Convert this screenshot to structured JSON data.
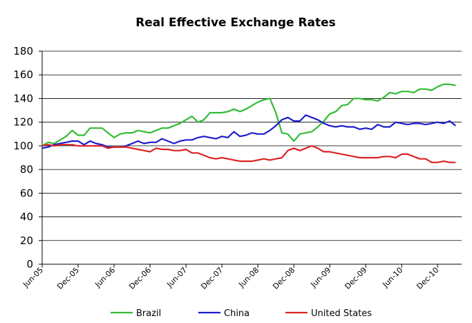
{
  "chart_data": {
    "type": "line",
    "title": "Real Effective Exchange Rates",
    "xlabel": "",
    "ylabel": "",
    "ylim": [
      0,
      180
    ],
    "yticks": [
      0,
      20,
      40,
      60,
      80,
      100,
      120,
      140,
      160,
      180
    ],
    "grid": "horizontal",
    "legend": "bottom",
    "x_tick_labels": [
      "Jun-05",
      "Dec-05",
      "Jun-06",
      "Dec-06",
      "Jun-07",
      "Dec-07",
      "Jun-08",
      "Dec-08",
      "Jun-09",
      "Dec-09",
      "Jun-10",
      "Dec-10"
    ],
    "x_start": "Jun-05",
    "x_frequency": "monthly",
    "series": [
      {
        "name": "Brazil",
        "color": "#33bb33",
        "values": [
          100,
          103,
          102,
          105,
          108,
          113,
          109,
          109,
          115,
          115,
          115,
          111,
          107,
          110,
          111,
          111,
          113,
          112,
          111,
          113,
          115,
          115,
          117,
          119,
          122,
          125,
          120,
          122,
          128,
          128,
          128,
          129,
          131,
          129,
          131,
          134,
          137,
          139,
          140,
          128,
          111,
          110,
          104,
          110,
          111,
          112,
          116,
          121,
          127,
          129,
          134,
          135,
          140,
          140,
          139,
          139,
          138,
          141,
          145,
          144,
          146,
          146,
          145,
          148,
          148,
          147,
          150,
          152,
          152,
          151
        ]
      },
      {
        "name": "China",
        "color": "#1c1ccc",
        "values": [
          98,
          99,
          101,
          102,
          103,
          104,
          104,
          101,
          104,
          102,
          101,
          99,
          99,
          99,
          100,
          102,
          104,
          102,
          103,
          103,
          106,
          104,
          102,
          104,
          105,
          105,
          107,
          108,
          107,
          106,
          108,
          107,
          112,
          108,
          109,
          111,
          110,
          110,
          113,
          117,
          122,
          124,
          121,
          121,
          126,
          124,
          122,
          119,
          117,
          116,
          117,
          116,
          116,
          114,
          115,
          114,
          118,
          116,
          116,
          120,
          119,
          118,
          119,
          119,
          118,
          119,
          120,
          119,
          121,
          117
        ]
      },
      {
        "name": "United States",
        "color": "#dd2222",
        "values": [
          100,
          101,
          100,
          101,
          101,
          101,
          100,
          100,
          100,
          100,
          100,
          98,
          99,
          99,
          99,
          98,
          97,
          96,
          95,
          98,
          97,
          97,
          96,
          96,
          97,
          94,
          94,
          92,
          90,
          89,
          90,
          89,
          88,
          87,
          87,
          87,
          88,
          89,
          88,
          89,
          90,
          96,
          98,
          96,
          98,
          100,
          98,
          95,
          95,
          94,
          93,
          92,
          91,
          90,
          90,
          90,
          90,
          91,
          91,
          90,
          93,
          93,
          91,
          89,
          89,
          86,
          86,
          87,
          86,
          86
        ]
      }
    ]
  }
}
